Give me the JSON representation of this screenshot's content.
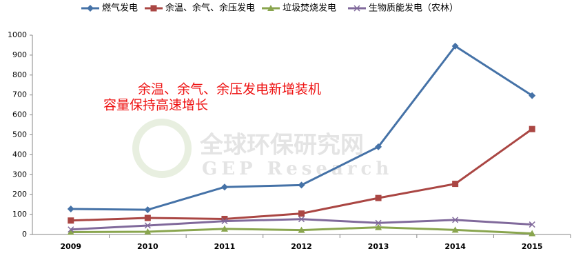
{
  "chart_data": {
    "type": "line",
    "annotation": [
      "余温、余气、余压发电新增装机",
      "容量保持高速增长"
    ],
    "watermark": [
      "全球环保研究网",
      "GEP Research"
    ],
    "categories": [
      "2009",
      "2010",
      "2011",
      "2012",
      "2013",
      "2014",
      "2015"
    ],
    "series": [
      {
        "name": "燃气发电",
        "color": "#4572a7",
        "marker": "diamond",
        "values": [
          128,
          124,
          238,
          248,
          440,
          945,
          697
        ]
      },
      {
        "name": "余温、余气、余压发电",
        "color": "#aa4643",
        "marker": "square",
        "values": [
          70,
          83,
          78,
          105,
          183,
          254,
          529
        ]
      },
      {
        "name": "垃圾焚烧发电",
        "color": "#89a54e",
        "marker": "triangle",
        "values": [
          12,
          14,
          28,
          22,
          36,
          23,
          5
        ]
      },
      {
        "name": "生物质能发电（农林）",
        "color": "#80699b",
        "marker": "x",
        "values": [
          25,
          45,
          67,
          77,
          58,
          73,
          50
        ]
      }
    ],
    "ylim": [
      0,
      1000
    ],
    "yticks": [
      0,
      100,
      200,
      300,
      400,
      500,
      600,
      700,
      800,
      900,
      1000
    ],
    "grid": false,
    "legend": "top"
  }
}
